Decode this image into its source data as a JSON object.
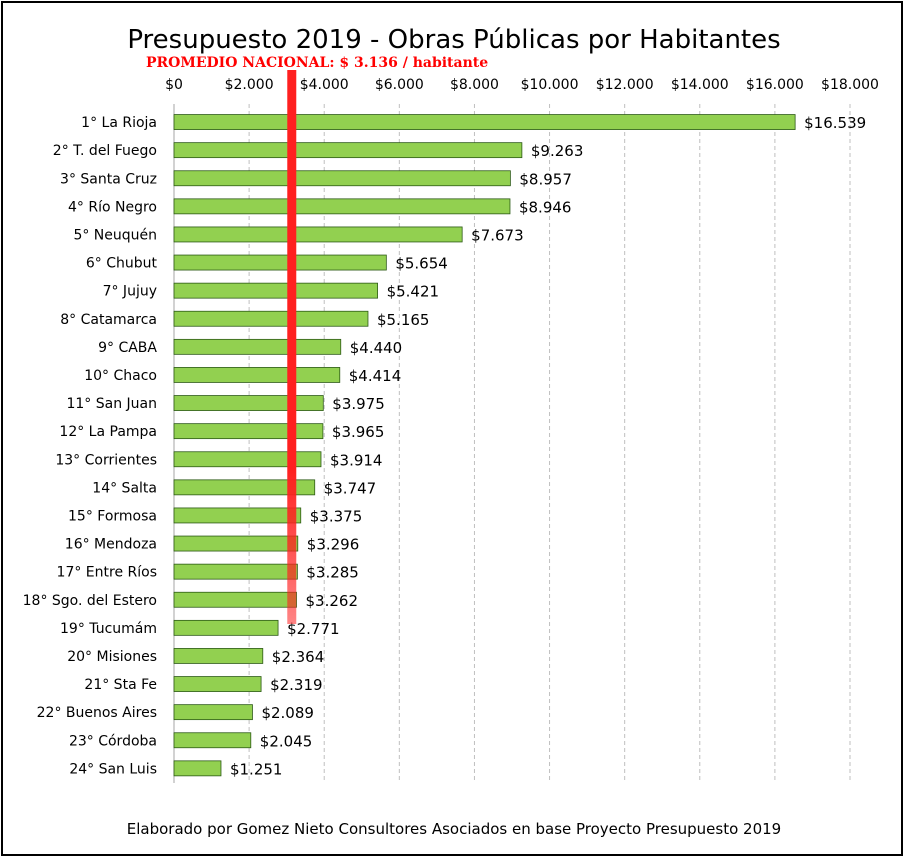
{
  "chart_data": {
    "type": "bar",
    "orientation": "horizontal",
    "title": "Presupuesto 2019 - Obras Públicas por Habitantes",
    "reference_line": {
      "label": "PROMEDIO NACIONAL: $ 3.136 / habitante",
      "value": 3136,
      "color": "#ff2020"
    },
    "xlim": [
      0,
      18000
    ],
    "x_ticks": [
      {
        "value": 0,
        "label": "$0"
      },
      {
        "value": 2000,
        "label": "$2.000"
      },
      {
        "value": 4000,
        "label": "$4.000"
      },
      {
        "value": 6000,
        "label": "$6.000"
      },
      {
        "value": 8000,
        "label": "$8.000"
      },
      {
        "value": 10000,
        "label": "$10.000"
      },
      {
        "value": 12000,
        "label": "$12.000"
      },
      {
        "value": 14000,
        "label": "$14.000"
      },
      {
        "value": 16000,
        "label": "$16.000"
      },
      {
        "value": 18000,
        "label": "$18.000"
      }
    ],
    "grid": "vertical dashed",
    "bar_color": "#92d050",
    "categories": [
      "1° La Rioja",
      "2° T. del Fuego",
      "3° Santa Cruz",
      "4° Río Negro",
      "5° Neuquén",
      "6° Chubut",
      "7° Jujuy",
      "8° Catamarca",
      "9° CABA",
      "10° Chaco",
      "11° San Juan",
      "12° La Pampa",
      "13° Corrientes",
      "14° Salta",
      "15° Formosa",
      "16° Mendoza",
      "17° Entre Ríos",
      "18° Sgo. del Estero",
      "19° Tucumám",
      "20° Misiones",
      "21° Sta Fe",
      "22° Buenos Aires",
      "23° Córdoba",
      "24° San Luis"
    ],
    "values": [
      16539,
      9263,
      8957,
      8946,
      7673,
      5654,
      5421,
      5165,
      4440,
      4414,
      3975,
      3965,
      3914,
      3747,
      3375,
      3296,
      3285,
      3262,
      2771,
      2364,
      2319,
      2089,
      2045,
      1251
    ],
    "value_labels": [
      "$16.539",
      "$9.263",
      "$8.957",
      "$8.946",
      "$7.673",
      "$5.654",
      "$5.421",
      "$5.165",
      "$4.440",
      "$4.414",
      "$3.975",
      "$3.965",
      "$3.914",
      "$3.747",
      "$3.375",
      "$3.296",
      "$3.285",
      "$3.262",
      "$2.771",
      "$2.364",
      "$2.319",
      "$2.089",
      "$2.045",
      "$1.251"
    ]
  },
  "footer": "Elaborado por Gomez Nieto Consultores Asociados en base Proyecto Presupuesto 2019"
}
